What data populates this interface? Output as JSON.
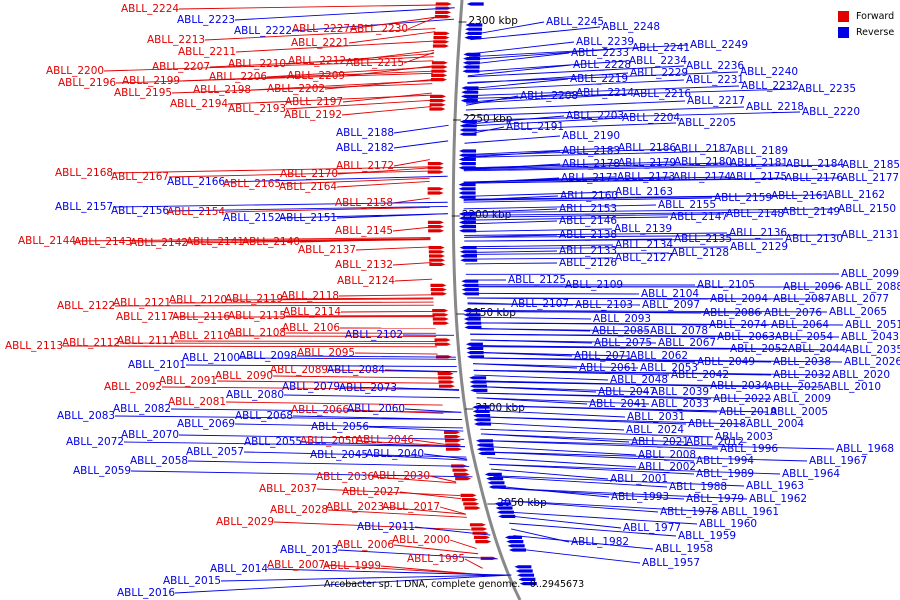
{
  "legend": {
    "forward_label": "Forward",
    "reverse_label": "Reverse",
    "forward_color": "#e00000",
    "reverse_color": "#0000e6"
  },
  "caption": "Arcobacter sp. L DNA, complete genome. - 0..2945673",
  "ticks": [
    "2300 kbp",
    "2250 kbp",
    "2200 kbp",
    "2150 kbp",
    "2100 kbp",
    "2050 kbp"
  ],
  "genes_forward": [
    "ABLL_2224",
    "ABLL_2227",
    "ABLL_2230",
    "ABLL_2221",
    "ABLL_2213",
    "ABLL_2211",
    "ABLL_2210",
    "ABLL_2212",
    "ABLL_2215",
    "ABLL_2207",
    "ABLL_2200",
    "ABLL_2206",
    "ABLL_2209",
    "ABLL_2199",
    "ABLL_2196",
    "ABLL_2198",
    "ABLL_2202",
    "ABLL_2195",
    "ABLL_2197",
    "ABLL_2194",
    "ABLL_2193",
    "ABLL_2192",
    "ABLL_2172",
    "ABLL_2170",
    "ABLL_2168",
    "ABLL_2167",
    "ABLL_2165",
    "ABLL_2164",
    "ABLL_2158",
    "ABLL_2154",
    "ABLL_2145",
    "ABLL_2144",
    "ABLL_2143",
    "ABLL_2142",
    "ABLL_2141",
    "ABLL_2140",
    "ABLL_2137",
    "ABLL_2132",
    "ABLL_2124",
    "ABLL_2118",
    "ABLL_2122",
    "ABLL_2121",
    "ABLL_2120",
    "ABLL_2119",
    "ABLL_2114",
    "ABLL_2117",
    "ABLL_2116",
    "ABLL_2115",
    "ABLL_2106",
    "ABLL_2110",
    "ABLL_2108",
    "ABLL_2113",
    "ABLL_2112",
    "ABLL_2111",
    "ABLL_2095",
    "ABLL_2089",
    "ABLL_2090",
    "ABLL_2091",
    "ABLL_2092",
    "ABLL_2081",
    "ABLL_2066",
    "ABLL_2050",
    "ABLL_2046",
    "ABLL_2036",
    "ABLL_2030",
    "ABLL_2037",
    "ABLL_2027",
    "ABLL_2028",
    "ABLL_2023",
    "ABLL_2017",
    "ABLL_2029",
    "ABLL_2006",
    "ABLL_2000",
    "ABLL_2007",
    "ABLL_1999",
    "ABLL_1995"
  ],
  "genes_reverse": [
    "ABLL_2223",
    "ABLL_2222",
    "ABLL_2188",
    "ABLL_2182",
    "ABLL_2166",
    "ABLL_2157",
    "ABLL_2156",
    "ABLL_2152",
    "ABLL_2151",
    "ABLL_2102",
    "ABLL_2100",
    "ABLL_2098",
    "ABLL_2101",
    "ABLL_2084",
    "ABLL_2079",
    "ABLL_2073",
    "ABLL_2080",
    "ABLL_2082",
    "ABLL_2083",
    "ABLL_2060",
    "ABLL_2068",
    "ABLL_2069",
    "ABLL_2056",
    "ABLL_2070",
    "ABLL_2072",
    "ABLL_2055",
    "ABLL_2057",
    "ABLL_2045",
    "ABLL_2040",
    "ABLL_2058",
    "ABLL_2059",
    "ABLL_2011",
    "ABLL_2013",
    "ABLL_2014",
    "ABLL_2015",
    "ABLL_2016",
    "ABLL_2245",
    "ABLL_2248",
    "ABLL_2239",
    "ABLL_2241",
    "ABLL_2249",
    "ABLL_2233",
    "ABLL_2234",
    "ABLL_2228",
    "ABLL_2229",
    "ABLL_2236",
    "ABLL_2240",
    "ABLL_2219",
    "ABLL_2231",
    "ABLL_2232",
    "ABLL_2235",
    "ABLL_2208",
    "ABLL_2214",
    "ABLL_2216",
    "ABLL_2217",
    "ABLL_2218",
    "ABLL_2220",
    "ABLL_2203",
    "ABLL_2204",
    "ABLL_2205",
    "ABLL_2191",
    "ABLL_2190",
    "ABLL_2186",
    "ABLL_2187",
    "ABLL_2189",
    "ABLL_2183",
    "ABLL_2178",
    "ABLL_2179",
    "ABLL_2180",
    "ABLL_2181",
    "ABLL_2184",
    "ABLL_2185",
    "ABLL_2171",
    "ABLL_2173",
    "ABLL_2174",
    "ABLL_2175",
    "ABLL_2176",
    "ABLL_2177",
    "ABLL_2160",
    "ABLL_2163",
    "ABLL_2159",
    "ABLL_2161",
    "ABLL_2162",
    "ABLL_2153",
    "ABLL_2155",
    "ABLL_2147",
    "ABLL_2148",
    "ABLL_2149",
    "ABLL_2150",
    "ABLL_2146",
    "ABLL_2139",
    "ABLL_2138",
    "ABLL_2136",
    "ABLL_2135",
    "ABLL_2130",
    "ABLL_2131",
    "ABLL_2133",
    "ABLL_2134",
    "ABLL_2129",
    "ABLL_2126",
    "ABLL_2127",
    "ABLL_2128",
    "ABLL_2125",
    "ABLL_2109",
    "ABLL_2104",
    "ABLL_2105",
    "ABLL_2099",
    "ABLL_2096",
    "ABLL_2088",
    "ABLL_2107",
    "ABLL_2103",
    "ABLL_2097",
    "ABLL_2094",
    "ABLL_2087",
    "ABLL_2077",
    "ABLL_2093",
    "ABLL_2086",
    "ABLL_2076",
    "ABLL_2065",
    "ABLL_2085",
    "ABLL_2078",
    "ABLL_2074",
    "ABLL_2064",
    "ABLL_2051",
    "ABLL_2075",
    "ABLL_2067",
    "ABLL_2063",
    "ABLL_2054",
    "ABLL_2044",
    "ABLL_2043",
    "ABLL_2071",
    "ABLL_2062",
    "ABLL_2052",
    "ABLL_2035",
    "ABLL_2061",
    "ABLL_2053",
    "ABLL_2049",
    "ABLL_2038",
    "ABLL_2026",
    "ABLL_2048",
    "ABLL_2042",
    "ABLL_2032",
    "ABLL_2020",
    "ABLL_2047",
    "ABLL_2039",
    "ABLL_2034",
    "ABLL_2025",
    "ABLL_2010",
    "ABLL_2041",
    "ABLL_2033",
    "ABLL_2022",
    "ABLL_2009",
    "ABLL_2031",
    "ABLL_2019",
    "ABLL_2005",
    "ABLL_2018",
    "ABLL_2004",
    "ABLL_2024",
    "ABLL_2003",
    "ABLL_2021",
    "ABLL_2012",
    "ABLL_1996",
    "ABLL_2008",
    "ABLL_2002",
    "ABLL_1994",
    "ABLL_1989",
    "ABLL_2001",
    "ABLL_1988",
    "ABLL_1968",
    "ABLL_1967",
    "ABLL_1964",
    "ABLL_1993",
    "ABLL_1979",
    "ABLL_1963",
    "ABLL_1962",
    "ABLL_1978",
    "ABLL_1961",
    "ABLL_1977",
    "ABLL_1960",
    "ABLL_1982",
    "ABLL_1959",
    "ABLL_1958",
    "ABLL_1957"
  ]
}
